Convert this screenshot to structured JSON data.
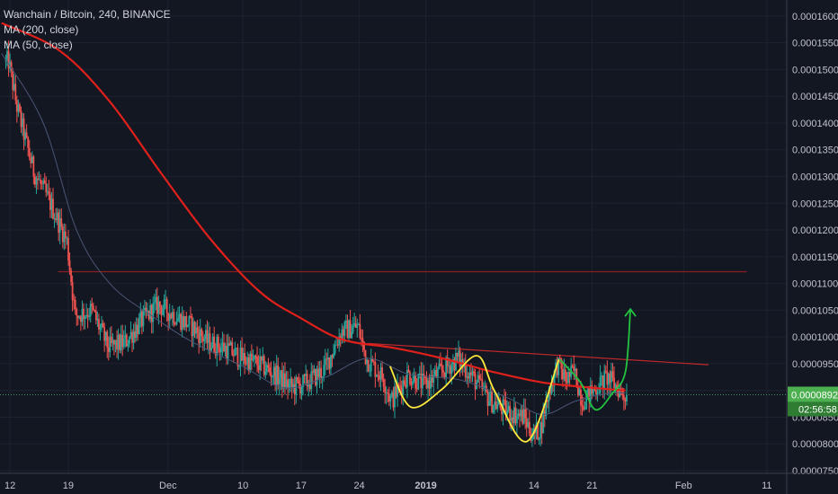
{
  "legend": {
    "title": "Wanchain / Bitcoin, 240, BINANCE",
    "ma200": "MA (200, close)",
    "ma50": "MA (50, close)"
  },
  "price_badge": {
    "value": "0.0000892",
    "countdown": "02:56:58"
  },
  "colors": {
    "background": "#131722",
    "up_candle": "#26a69a",
    "down_candle": "#ef5350",
    "ma200": "#e0201b",
    "ma50": "#4a5677",
    "resistance_line": "#8b1e1e",
    "pattern_yellow": "#ffeb3b",
    "pattern_green": "#23c341",
    "badge": "#4caf50"
  },
  "chart_data": {
    "type": "candlestick",
    "title": "Wanchain / Bitcoin, 240, BINANCE",
    "x_axis": {
      "ticks": [
        {
          "label": "12",
          "day": 0
        },
        {
          "label": "19",
          "day": 7
        },
        {
          "label": "Dec",
          "day": 19
        },
        {
          "label": "10",
          "day": 28
        },
        {
          "label": "17",
          "day": 35
        },
        {
          "label": "24",
          "day": 42
        },
        {
          "label": "2019",
          "day": 50
        },
        {
          "label": "14",
          "day": 63
        },
        {
          "label": "21",
          "day": 70
        },
        {
          "label": "Feb",
          "day": 81
        },
        {
          "label": "11",
          "day": 91
        }
      ],
      "range": [
        -1.2,
        93.4
      ]
    },
    "y_axis": {
      "ticks": [
        "0.0001600",
        "0.0001550",
        "0.0001500",
        "0.0001450",
        "0.0001400",
        "0.0001350",
        "0.0001300",
        "0.0001250",
        "0.0001200",
        "0.0001150",
        "0.0001100",
        "0.0001050",
        "0.0001000",
        "0.0000950",
        "0.0000900",
        "0.0000850",
        "0.0000800",
        "0.0000750"
      ],
      "range": [
        7.45e-05,
        0.000163
      ]
    },
    "price_anchors": [
      [
        0,
        0.0001515
      ],
      [
        1,
        0.000143
      ],
      [
        3,
        0.000131
      ],
      [
        5,
        0.000125
      ],
      [
        7,
        0.000118
      ],
      [
        8,
        0.000104
      ],
      [
        10,
        0.000105
      ],
      [
        12,
        9.8e-05
      ],
      [
        14,
        9.9e-05
      ],
      [
        16,
        0.000103
      ],
      [
        18,
        0.000106
      ],
      [
        20,
        0.000104
      ],
      [
        22,
        0.000102
      ],
      [
        24,
        9.9e-05
      ],
      [
        26,
        9.8e-05
      ],
      [
        28,
        9.6e-05
      ],
      [
        30,
        9.5e-05
      ],
      [
        32,
        9.3e-05
      ],
      [
        34,
        9.05e-05
      ],
      [
        36,
        9.15e-05
      ],
      [
        38,
        9.4e-05
      ],
      [
        40,
        0.000101
      ],
      [
        42,
        0.000102
      ],
      [
        43,
        9.6e-05
      ],
      [
        45,
        9.25e-05
      ],
      [
        46,
        8.8e-05
      ],
      [
        48,
        9.3e-05
      ],
      [
        50,
        9.1e-05
      ],
      [
        52,
        9.35e-05
      ],
      [
        54,
        9.6e-05
      ],
      [
        56,
        9.2e-05
      ],
      [
        58,
        8.8e-05
      ],
      [
        60,
        8.6e-05
      ],
      [
        62,
        8.5e-05
      ],
      [
        63,
        8.15e-05
      ],
      [
        64,
        8.3e-05
      ],
      [
        65,
        9e-05
      ],
      [
        66,
        9.5e-05
      ],
      [
        67,
        9.2e-05
      ],
      [
        68,
        9.35e-05
      ],
      [
        69,
        8.8e-05
      ],
      [
        70,
        8.95e-05
      ],
      [
        71,
        9.1e-05
      ],
      [
        72,
        9.25e-05
      ],
      [
        74,
        8.92e-05
      ]
    ],
    "ma200": [
      [
        -1,
        0.0001587
      ],
      [
        6,
        0.0001535
      ],
      [
        12,
        0.000144
      ],
      [
        18,
        0.000131
      ],
      [
        24,
        0.0001185
      ],
      [
        30,
        0.0001085
      ],
      [
        35,
        0.0001035
      ],
      [
        40,
        9.95e-05
      ],
      [
        46,
        9.8e-05
      ],
      [
        52,
        9.6e-05
      ],
      [
        58,
        9.35e-05
      ],
      [
        64,
        9.15e-05
      ],
      [
        70,
        9.05e-05
      ],
      [
        74,
        9e-05
      ]
    ],
    "ma50": [
      [
        -1,
        0.000153
      ],
      [
        4,
        0.00014
      ],
      [
        8,
        0.00012
      ],
      [
        12,
        0.00011
      ],
      [
        17,
        0.000104
      ],
      [
        22,
        9.9e-05
      ],
      [
        28,
        9.45e-05
      ],
      [
        33,
        9.05e-05
      ],
      [
        38,
        9.25e-05
      ],
      [
        43,
        9.6e-05
      ],
      [
        48,
        9.3e-05
      ],
      [
        54,
        9.2e-05
      ],
      [
        60,
        8.85e-05
      ],
      [
        64,
        8.55e-05
      ],
      [
        68,
        8.8e-05
      ],
      [
        72,
        8.95e-05
      ],
      [
        74,
        8.95e-05
      ]
    ],
    "resistance_horizontal": {
      "price": 0.0001122,
      "x_start": 5.8,
      "x_end": 88.6
    },
    "descending_trendline": [
      [
        43,
        9.88e-05
      ],
      [
        84,
        9.48e-05
      ]
    ],
    "current_price_line": 8.92e-05,
    "annotations": {
      "yellow_pattern": [
        [
          45.7,
          9.45e-05
        ],
        [
          48.2,
          8.69e-05
        ],
        [
          52.0,
          9.03e-05
        ],
        [
          56.1,
          9.65e-05
        ],
        [
          58.3,
          8.98e-05
        ],
        [
          62.2,
          8.05e-05
        ],
        [
          66.0,
          9.58e-05
        ]
      ],
      "green_pattern": [
        [
          66.1,
          9.58e-05
        ],
        [
          68.6,
          9.15e-05
        ],
        [
          70.4,
          8.64e-05
        ],
        [
          72.4,
          8.94e-05
        ],
        [
          74.0,
          9.35e-05
        ],
        [
          74.6,
          0.0001052
        ]
      ]
    }
  }
}
